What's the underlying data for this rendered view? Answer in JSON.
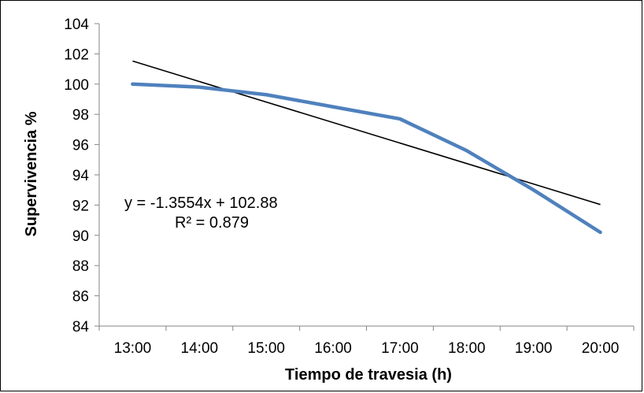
{
  "chart_data": {
    "type": "line",
    "title": "",
    "xlabel": "Tiempo de travesia (h)",
    "ylabel": "Supervivencia %",
    "categories": [
      "13:00",
      "14:00",
      "15:00",
      "16:00",
      "17:00",
      "18:00",
      "19:00",
      "20:00"
    ],
    "ylim": [
      84,
      104
    ],
    "yticks": [
      84,
      86,
      88,
      90,
      92,
      94,
      96,
      98,
      100,
      102,
      104
    ],
    "grid": false,
    "legend": "none",
    "series": [
      {
        "values": [
          100.0,
          99.8,
          99.3,
          98.5,
          97.7,
          95.6,
          93.0,
          90.2
        ],
        "color": "#4f81bd"
      }
    ],
    "trendline": {
      "type": "linear",
      "slope": -1.3554,
      "intercept": 102.88,
      "color": "#000000",
      "equation_label": "y = -1.3554x + 102.88",
      "r2_label": "R² = 0.879"
    }
  }
}
